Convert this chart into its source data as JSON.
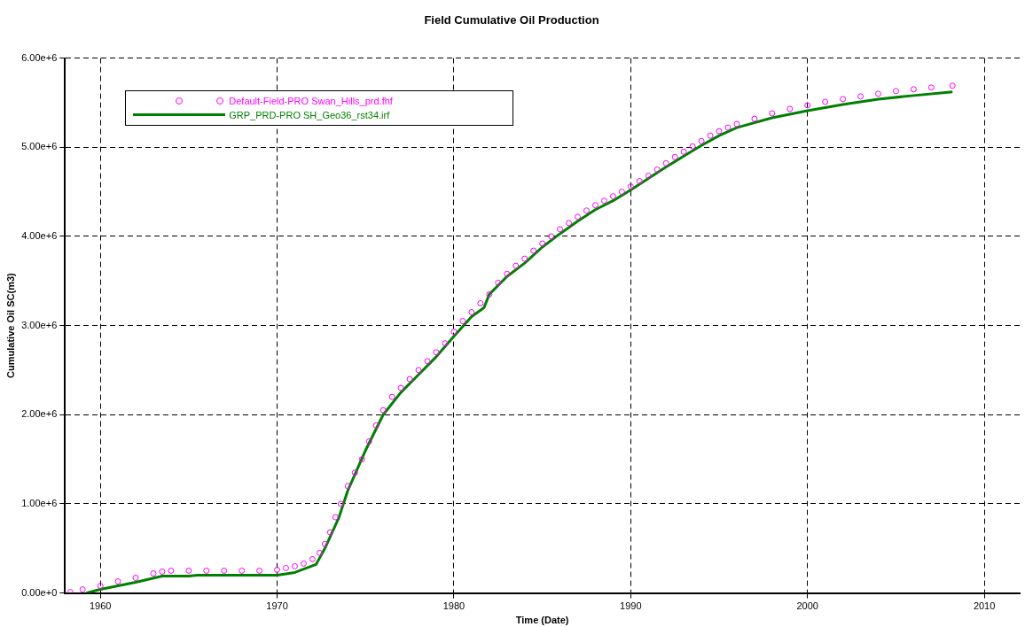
{
  "chart_data": {
    "type": "line",
    "title": "Field Cumulative Oil Production",
    "xlabel": "Time (Date)",
    "ylabel": "Cumulative Oil SC(m3)",
    "xlim": [
      1958,
      2012
    ],
    "xticks": [
      1960,
      1970,
      1980,
      1990,
      2000,
      2010
    ],
    "ylim": [
      0,
      6000000
    ],
    "yticks": [
      {
        "value": 0,
        "label": "0.00e+0"
      },
      {
        "value": 1000000,
        "label": "1.00e+6"
      },
      {
        "value": 2000000,
        "label": "2.00e+6"
      },
      {
        "value": 3000000,
        "label": "3.00e+6"
      },
      {
        "value": 4000000,
        "label": "4.00e+6"
      },
      {
        "value": 5000000,
        "label": "5.00e+6"
      },
      {
        "value": 6000000,
        "label": "6.00e+6"
      }
    ],
    "grid": true,
    "legend": "top left",
    "line_style": "dashed",
    "series": [
      {
        "name": "Default-Field-PRO Swan_Hills_prd.fhf",
        "type": "scatter",
        "marker": "circle",
        "color": "#ff00ff",
        "x": [
          1958.3,
          1959,
          1960,
          1961,
          1962,
          1963,
          1963.5,
          1964,
          1965,
          1966,
          1967,
          1968,
          1969,
          1970,
          1970.5,
          1971,
          1971.5,
          1972,
          1972.4,
          1972.7,
          1973,
          1973.3,
          1973.6,
          1974,
          1974.4,
          1974.8,
          1975.2,
          1975.6,
          1976,
          1976.5,
          1977,
          1977.5,
          1978,
          1978.5,
          1979,
          1979.5,
          1980,
          1980.5,
          1981,
          1981.5,
          1982,
          1982.5,
          1983,
          1983.5,
          1984,
          1984.5,
          1985,
          1985.5,
          1986,
          1986.5,
          1987,
          1987.5,
          1988,
          1988.5,
          1989,
          1989.5,
          1990,
          1990.5,
          1991,
          1991.5,
          1992,
          1992.5,
          1993,
          1993.5,
          1994,
          1994.5,
          1995,
          1995.5,
          1996,
          1997,
          1998,
          1999,
          2000,
          2001,
          2002,
          2003,
          2004,
          2005,
          2006,
          2007,
          2008.2
        ],
        "values": [
          10000,
          40000,
          80000,
          130000,
          170000,
          220000,
          240000,
          250000,
          250000,
          250000,
          250000,
          250000,
          250000,
          260000,
          280000,
          300000,
          330000,
          380000,
          450000,
          550000,
          680000,
          850000,
          1000000,
          1200000,
          1350000,
          1500000,
          1700000,
          1880000,
          2050000,
          2200000,
          2300000,
          2400000,
          2500000,
          2600000,
          2700000,
          2800000,
          2930000,
          3050000,
          3150000,
          3250000,
          3350000,
          3480000,
          3580000,
          3670000,
          3750000,
          3840000,
          3920000,
          4000000,
          4080000,
          4150000,
          4220000,
          4290000,
          4350000,
          4400000,
          4450000,
          4500000,
          4560000,
          4620000,
          4680000,
          4750000,
          4820000,
          4890000,
          4950000,
          5010000,
          5070000,
          5130000,
          5180000,
          5220000,
          5260000,
          5320000,
          5380000,
          5430000,
          5470000,
          5510000,
          5540000,
          5570000,
          5600000,
          5630000,
          5650000,
          5670000,
          5690000
        ]
      },
      {
        "name": "GRP_PRD-PRO SH_Geo36_rst34.irf",
        "type": "line",
        "marker": "none",
        "line_style": "solid",
        "color": "#008000",
        "x": [
          1959.2,
          1960,
          1962,
          1963.5,
          1965,
          1965.5,
          1970,
          1971,
          1972.2,
          1972.7,
          1973.5,
          1974,
          1975,
          1976,
          1977,
          1978,
          1979,
          1980,
          1981,
          1981.7,
          1982,
          1983,
          1984,
          1985,
          1986,
          1987,
          1988,
          1989,
          1990,
          1991,
          1992,
          1993,
          1994,
          1995,
          1996,
          1998,
          2000,
          2002,
          2004,
          2006,
          2008.2
        ],
        "values": [
          0,
          40000,
          120000,
          190000,
          190000,
          200000,
          200000,
          230000,
          320000,
          500000,
          850000,
          1150000,
          1600000,
          2000000,
          2250000,
          2450000,
          2650000,
          2880000,
          3100000,
          3200000,
          3350000,
          3550000,
          3700000,
          3880000,
          4030000,
          4170000,
          4300000,
          4400000,
          4520000,
          4650000,
          4780000,
          4900000,
          5020000,
          5130000,
          5220000,
          5330000,
          5410000,
          5480000,
          5540000,
          5580000,
          5620000
        ]
      }
    ]
  }
}
